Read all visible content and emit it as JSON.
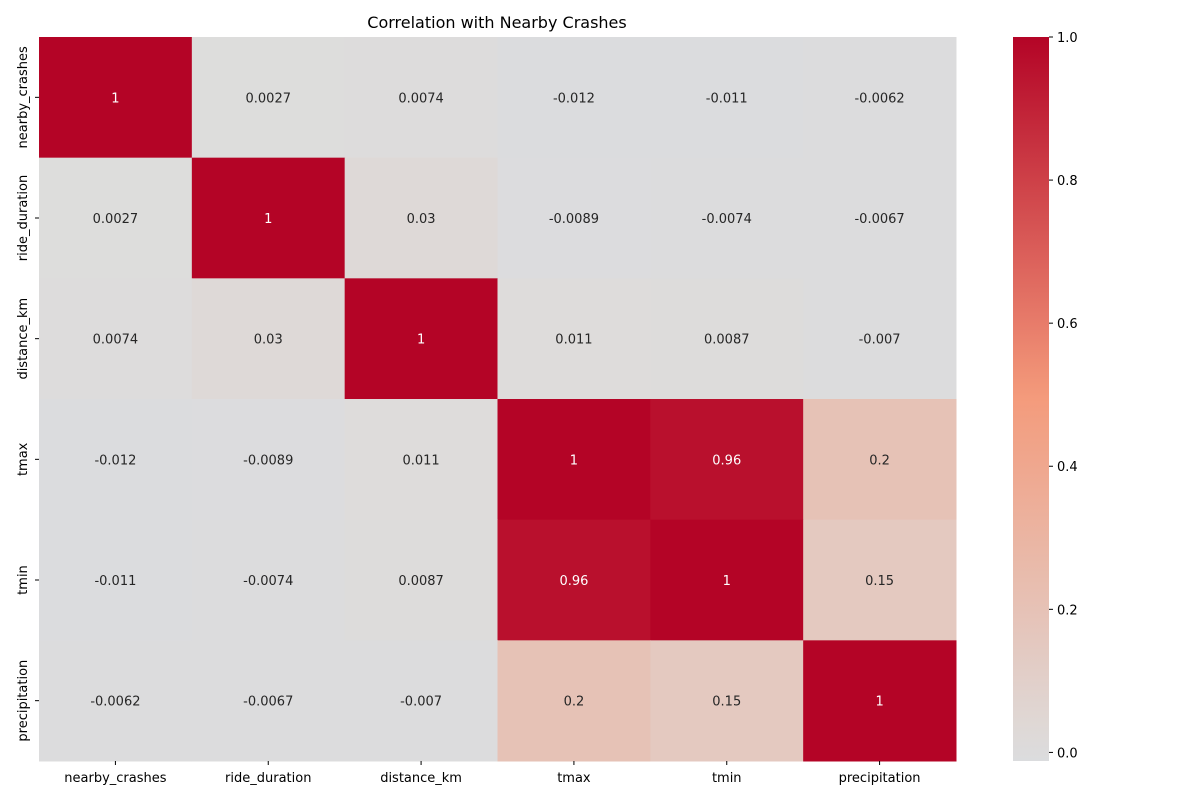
{
  "chart_data": {
    "type": "heatmap",
    "title": "Correlation with Nearby Crashes",
    "xlabel": "",
    "ylabel": "",
    "variables": [
      "nearby_crashes",
      "ride_duration",
      "distance_km",
      "tmax",
      "tmin",
      "precipitation"
    ],
    "matrix": [
      [
        1,
        0.0027,
        0.0074,
        -0.012,
        -0.011,
        -0.0062
      ],
      [
        0.0027,
        1,
        0.03,
        -0.0089,
        -0.0074,
        -0.0067
      ],
      [
        0.0074,
        0.03,
        1,
        0.011,
        0.0087,
        -0.007
      ],
      [
        -0.012,
        -0.0089,
        0.011,
        1,
        0.96,
        0.2
      ],
      [
        -0.011,
        -0.0074,
        0.0087,
        0.96,
        1,
        0.15
      ],
      [
        -0.0062,
        -0.0067,
        -0.007,
        0.2,
        0.15,
        1
      ]
    ],
    "cell_labels": [
      [
        "1",
        "0.0027",
        "0.0074",
        "-0.012",
        "-0.011",
        "-0.0062"
      ],
      [
        "0.0027",
        "1",
        "0.03",
        "-0.0089",
        "-0.0074",
        "-0.0067"
      ],
      [
        "0.0074",
        "0.03",
        "1",
        "0.011",
        "0.0087",
        "-0.007"
      ],
      [
        "-0.012",
        "-0.0089",
        "0.011",
        "1",
        "0.96",
        "0.2"
      ],
      [
        "-0.011",
        "-0.0074",
        "0.0087",
        "0.96",
        "1",
        "0.15"
      ],
      [
        "-0.0062",
        "-0.0067",
        "-0.007",
        "0.2",
        "0.15",
        "1"
      ]
    ],
    "colormap": "coolwarm",
    "color_range": [
      -1,
      1
    ],
    "colorbar": {
      "ticks": [
        0.0,
        0.2,
        0.4,
        0.6,
        0.8,
        1.0
      ],
      "tick_labels": [
        "0.0",
        "0.2",
        "0.4",
        "0.6",
        "0.8",
        "1.0"
      ],
      "range": [
        -0.012,
        1.0
      ]
    },
    "grid": false,
    "annotated": true
  }
}
